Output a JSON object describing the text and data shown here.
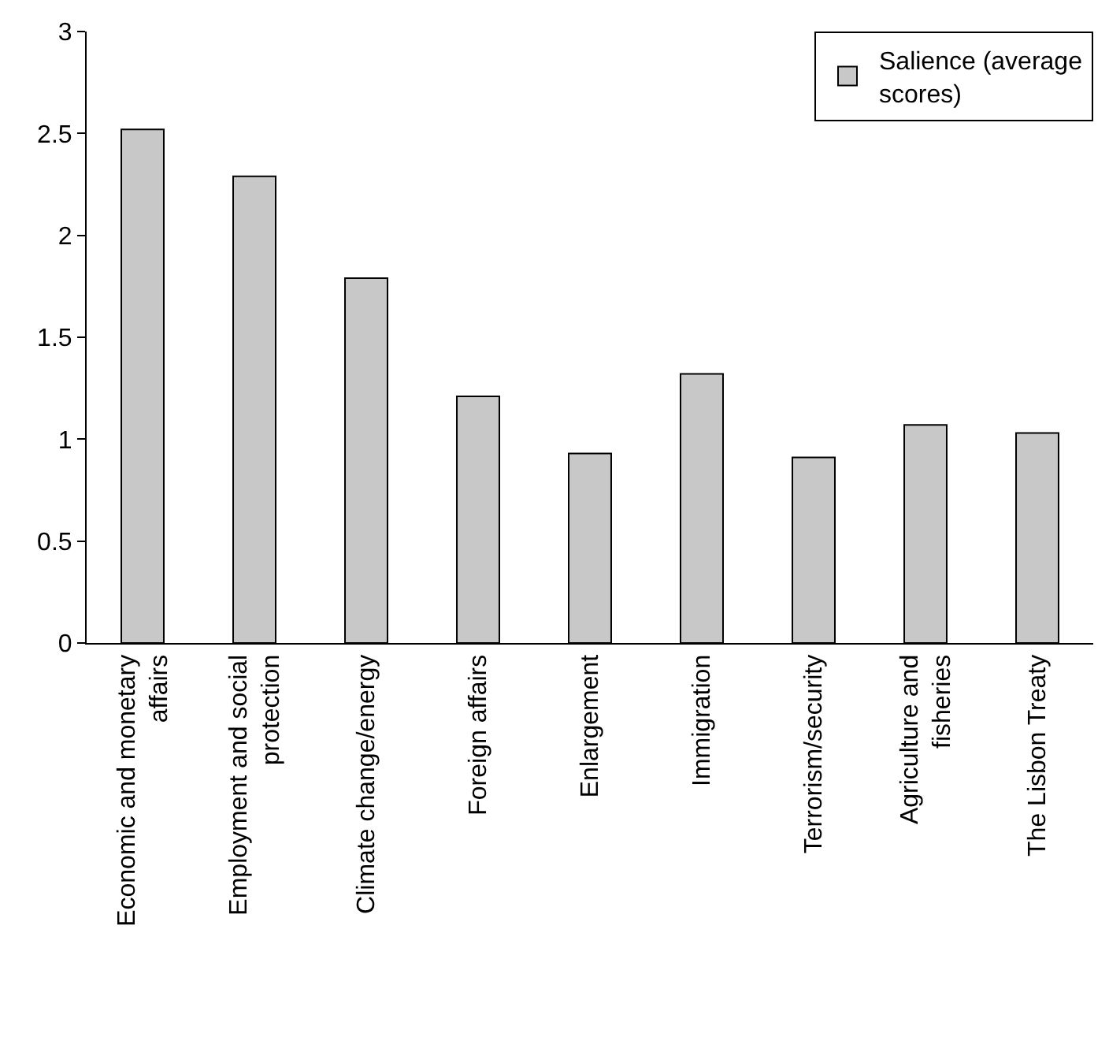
{
  "chart_data": {
    "type": "bar",
    "categories": [
      "Economic and monetary affairs",
      "Employment and social protection",
      "Climate change/energy",
      "Foreign affairs",
      "Enlargement",
      "Immigration",
      "Terrorism/security",
      "Agriculture and fisheries",
      "The Lisbon Treaty"
    ],
    "series": [
      {
        "name": "Salience (average scores)",
        "color": "#c8c8c8",
        "values": [
          2.52,
          2.29,
          1.79,
          1.21,
          0.93,
          1.32,
          0.91,
          1.07,
          1.03
        ]
      }
    ],
    "ylim": [
      0,
      3
    ],
    "yticks": [
      0,
      0.5,
      1,
      1.5,
      2,
      2.5,
      3
    ],
    "grid": false,
    "legend": "top right"
  }
}
